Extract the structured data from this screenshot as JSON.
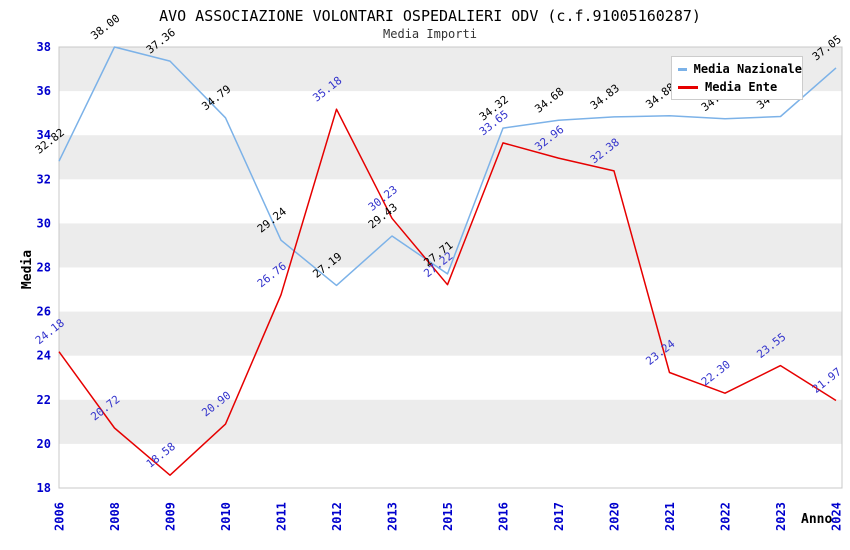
{
  "title": "AVO ASSOCIAZIONE VOLONTARI OSPEDALIERI ODV (c.f.91005160287)",
  "subtitle": "Media Importi",
  "axes": {
    "x_title": "Anno",
    "y_title": "Media",
    "y_ticks": [
      18,
      20,
      22,
      24,
      26,
      28,
      30,
      32,
      34,
      36,
      38
    ],
    "tick_color": "#0000cd"
  },
  "legend": {
    "items": [
      {
        "label": "Media Nazionale",
        "color": "#7cb2e8"
      },
      {
        "label": "Media Ente",
        "color": "#e60000"
      }
    ]
  },
  "colors": {
    "band": "#ececec",
    "plot_border": "#c8c8c8",
    "line_nazionale": "#7cb2e8",
    "line_ente": "#e60000",
    "label_nazionale": "#000000",
    "label_ente": "#3333cc"
  },
  "chart_data": {
    "type": "line",
    "title": "AVO ASSOCIAZIONE VOLONTARI OSPEDALIERI ODV (c.f.91005160287)",
    "subtitle": "Media Importi",
    "xlabel": "Anno",
    "ylabel": "Media",
    "ylim": [
      18,
      38
    ],
    "grid": "alternating-horizontal-bands",
    "legend_position": "top-right",
    "categories": [
      "2006",
      "2008",
      "2009",
      "2010",
      "2011",
      "2012",
      "2013",
      "2015",
      "2016",
      "2017",
      "2020",
      "2021",
      "2022",
      "2023",
      "2024"
    ],
    "series": [
      {
        "name": "Media Nazionale",
        "color": "#7cb2e8",
        "label_color": "#000000",
        "values": [
          32.82,
          38.0,
          37.36,
          34.79,
          29.24,
          27.19,
          29.43,
          27.71,
          34.32,
          34.68,
          34.83,
          34.88,
          34.75,
          34.85,
          37.05
        ]
      },
      {
        "name": "Media Ente",
        "color": "#e60000",
        "label_color": "#3333cc",
        "values": [
          24.18,
          20.72,
          18.58,
          20.9,
          26.76,
          35.18,
          30.23,
          27.22,
          33.65,
          32.96,
          32.38,
          23.24,
          22.3,
          23.55,
          21.97
        ]
      }
    ]
  }
}
